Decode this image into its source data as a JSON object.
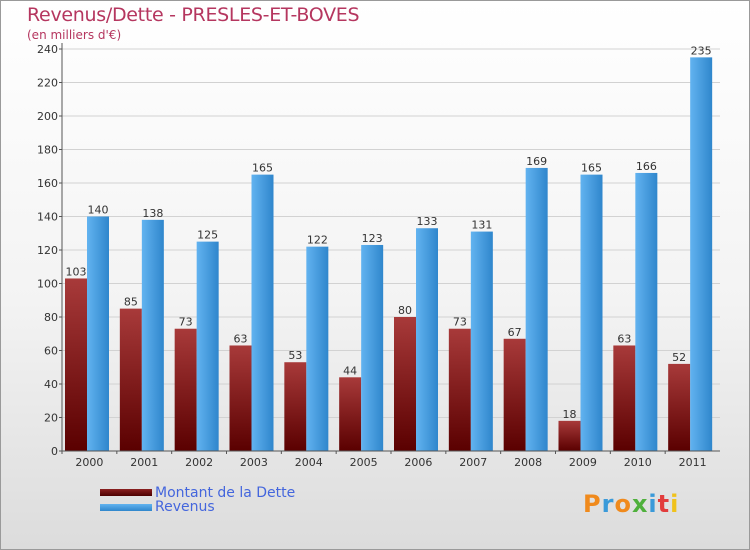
{
  "chart_data": {
    "type": "bar",
    "title": "Revenus/Dette - PRESLES-ET-BOVES",
    "subtitle": "(en milliers d'€)",
    "categories": [
      "2000",
      "2001",
      "2002",
      "2003",
      "2004",
      "2005",
      "2006",
      "2007",
      "2008",
      "2009",
      "2010",
      "2011"
    ],
    "series": [
      {
        "name": "Montant de la Dette",
        "color": "#7a0f10",
        "values": [
          103,
          85,
          73,
          63,
          53,
          44,
          80,
          73,
          67,
          18,
          63,
          52
        ]
      },
      {
        "name": "Revenus",
        "color": "#4aa3e8",
        "values": [
          140,
          138,
          125,
          165,
          122,
          123,
          133,
          131,
          169,
          165,
          166,
          235
        ]
      }
    ],
    "ylim": [
      0,
      240
    ],
    "yticks": [
      0,
      20,
      40,
      60,
      80,
      100,
      120,
      140,
      160,
      180,
      200,
      220,
      240
    ],
    "grid": true,
    "legend_position": "bottom-left"
  },
  "brand": {
    "logo_text": "Proxiti",
    "logo_letters": [
      "P",
      "r",
      "o",
      "x",
      "i",
      "t",
      "i"
    ],
    "logo_colors": [
      "#f08a1c",
      "#3a9ad9",
      "#f08a1c",
      "#4fb03c",
      "#3a9ad9",
      "#e23c3c",
      "#f0c21c"
    ]
  }
}
